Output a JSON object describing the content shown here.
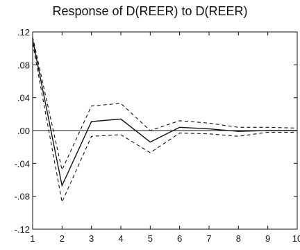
{
  "chart_data": {
    "type": "line",
    "title": "Response of D(REER) to D(REER)",
    "x": [
      1,
      2,
      3,
      4,
      5,
      6,
      7,
      8,
      9,
      10
    ],
    "xticks": [
      "1",
      "2",
      "3",
      "4",
      "5",
      "6",
      "7",
      "8",
      "9",
      "10"
    ],
    "ylim": [
      -0.12,
      0.12
    ],
    "yticks": [
      ".12",
      ".08",
      ".04",
      ".00",
      "-.04",
      "-.08",
      "-.12"
    ],
    "ytick_values": [
      0.12,
      0.08,
      0.04,
      0.0,
      -0.04,
      -0.08,
      -0.12
    ],
    "zero_line": true,
    "grid": false,
    "series": [
      {
        "style": "solid",
        "values": [
          0.111,
          -0.067,
          0.011,
          0.014,
          -0.014,
          0.004,
          0.002,
          -0.001,
          0.0,
          0.0
        ]
      },
      {
        "style": "dashed",
        "values": [
          0.114,
          -0.048,
          0.03,
          0.033,
          0.0,
          0.012,
          0.009,
          0.004,
          0.004,
          0.003
        ]
      },
      {
        "style": "dashed",
        "values": [
          0.106,
          -0.087,
          -0.007,
          -0.005,
          -0.027,
          -0.003,
          -0.004,
          -0.007,
          -0.002,
          -0.002
        ]
      }
    ],
    "colors": {
      "line": "#111111",
      "axis": "#111111",
      "background": "#ffffff"
    }
  }
}
